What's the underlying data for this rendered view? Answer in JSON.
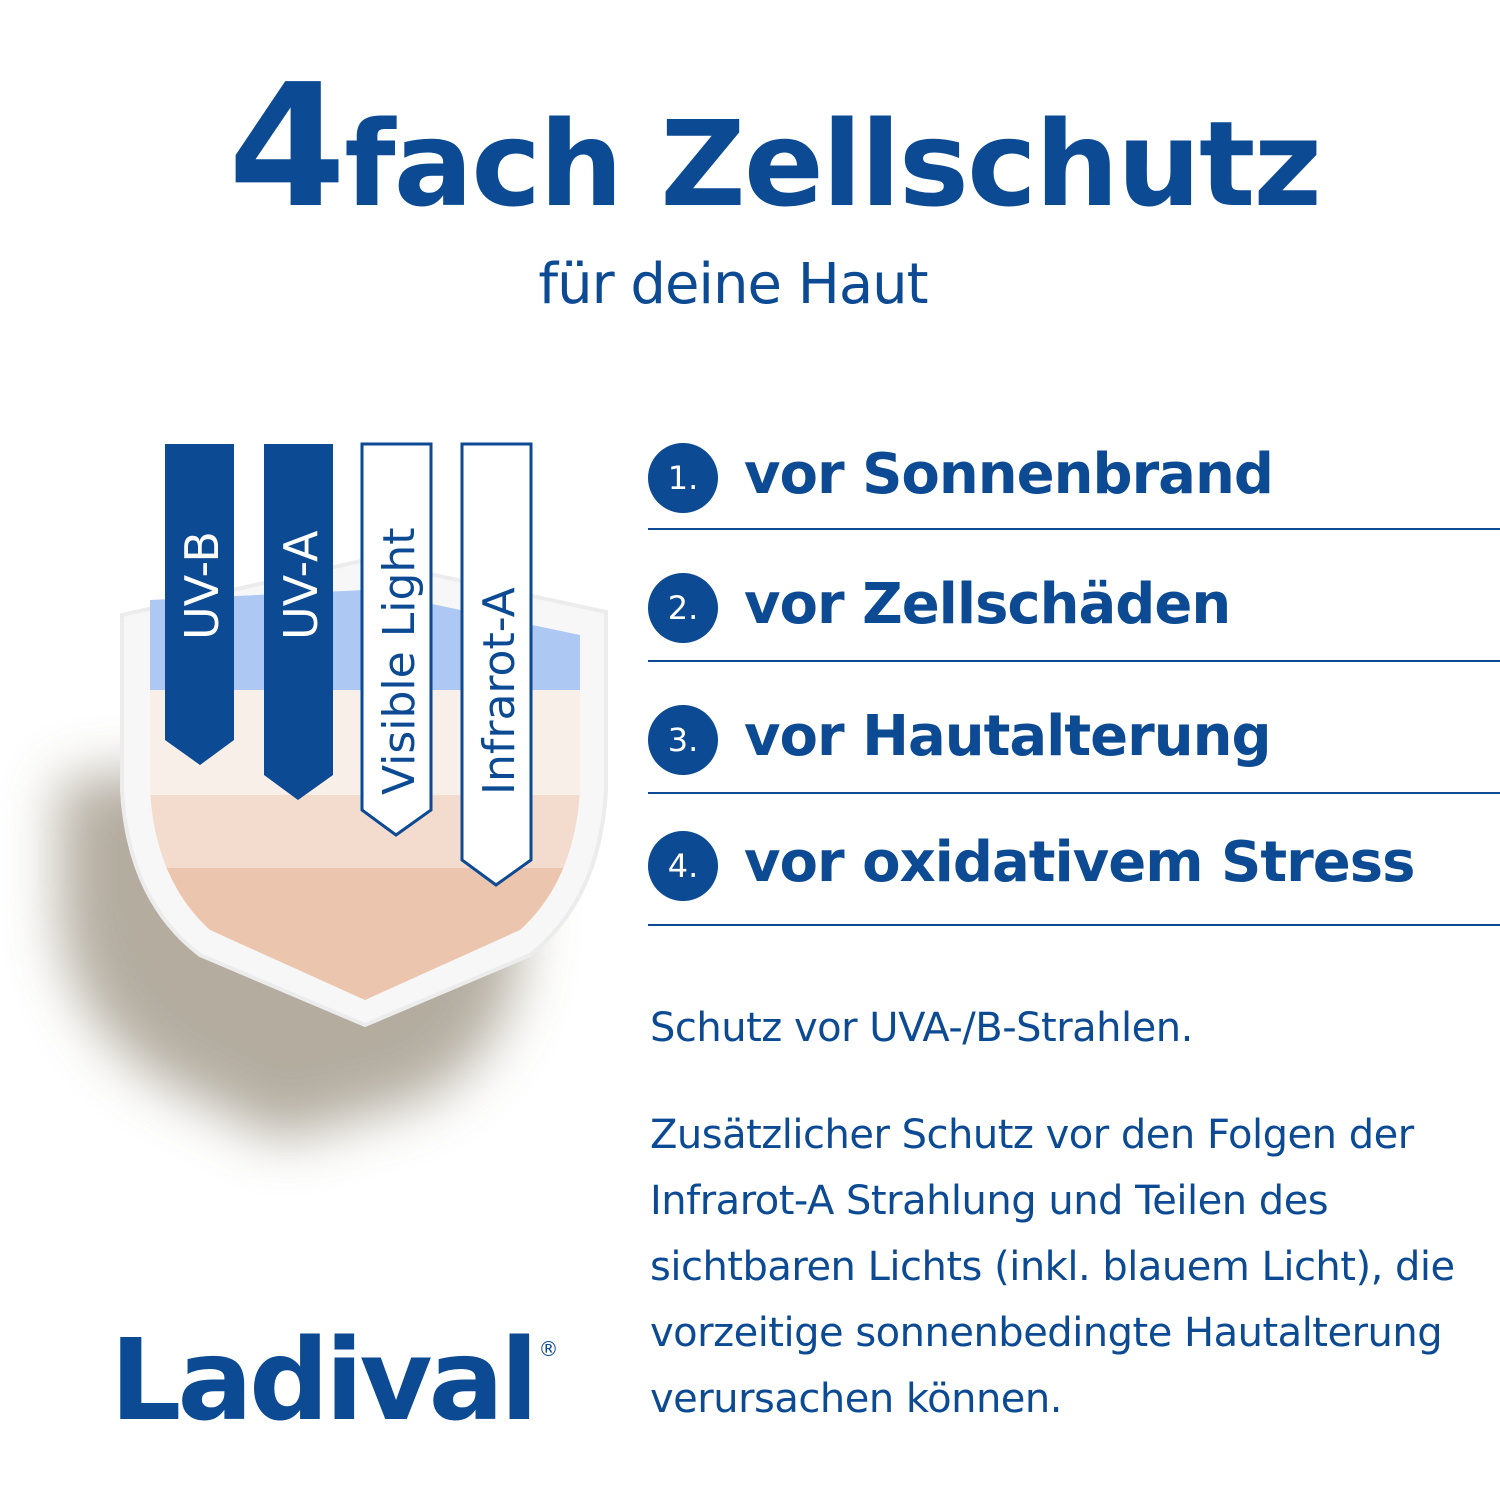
{
  "header": {
    "title_number": "4",
    "title_rest": "fach Zellschutz",
    "subtitle": "für deine Haut"
  },
  "shield": {
    "bands": [
      {
        "label": "UV-B",
        "style": "filled"
      },
      {
        "label": "UV-A",
        "style": "filled"
      },
      {
        "label": "Visible Light",
        "style": "outline"
      },
      {
        "label": "Infrarot-A",
        "style": "outline"
      }
    ]
  },
  "benefits": [
    {
      "number": "1.",
      "text": "vor Sonnenbrand"
    },
    {
      "number": "2.",
      "text": "vor Zellschäden"
    },
    {
      "number": "3.",
      "text": "vor Hautalterung"
    },
    {
      "number": "4.",
      "text": "vor oxidativem Stress"
    }
  ],
  "description": {
    "p1": "Schutz vor UVA-/B-Strahlen.",
    "p2": "Zusätzlicher Schutz vor den Folgen der Infrarot-A Strahlung und Teilen des sichtbaren Lichts (inkl. blauem Licht), die vorzeitige sonnenbedingte Hautalterung verursachen können."
  },
  "logo": {
    "brand": "Ladival",
    "mark": "®"
  },
  "colors": {
    "brand_blue": "#0c4a93",
    "layer_blue": "#adc8f2",
    "skin_light": "#f9efe9",
    "skin_mid": "#f3dccd",
    "skin_dark": "#ebc5ad"
  }
}
